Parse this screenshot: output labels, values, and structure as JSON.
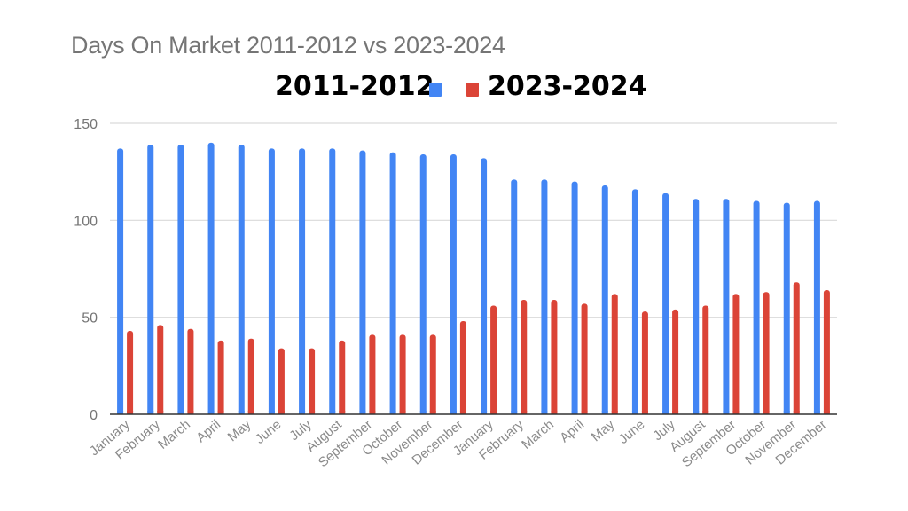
{
  "chart_data": {
    "type": "bar",
    "title": "Days On Market 2011-2012 vs 2023-2024",
    "xlabel": "",
    "ylabel": "",
    "ylim": [
      0,
      150
    ],
    "yticks": [
      0,
      50,
      100,
      150
    ],
    "grid": true,
    "legend_position": "top",
    "categories": [
      "January",
      "February",
      "March",
      "April",
      "May",
      "June",
      "July",
      "August",
      "September",
      "October",
      "November",
      "December",
      "January",
      "February",
      "March",
      "April",
      "May",
      "June",
      "July",
      "August",
      "September",
      "October",
      "November",
      "December"
    ],
    "series": [
      {
        "name": "2011-2012",
        "color": "#4285f4",
        "values": [
          137,
          139,
          139,
          140,
          139,
          137,
          137,
          137,
          136,
          135,
          134,
          134,
          132,
          121,
          121,
          120,
          118,
          116,
          114,
          111,
          111,
          110,
          109,
          110
        ]
      },
      {
        "name": "2023-2024",
        "color": "#db4437",
        "values": [
          43,
          46,
          44,
          38,
          39,
          34,
          34,
          38,
          41,
          41,
          41,
          48,
          56,
          59,
          59,
          57,
          62,
          53,
          54,
          56,
          62,
          63,
          68,
          64
        ]
      }
    ]
  },
  "legend": {
    "left_label": "2011-2012",
    "right_label": "2023-2024"
  }
}
